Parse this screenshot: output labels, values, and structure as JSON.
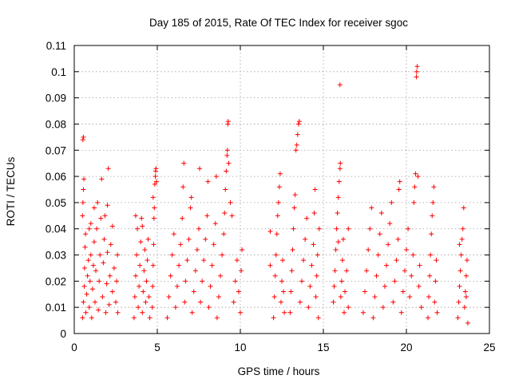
{
  "chart_data": {
    "type": "scatter",
    "title": "Day 185 of 2015, Rate Of TEC Index for receiver sgoc",
    "xlabel": "GPS time / hours",
    "ylabel": "ROTI / TECUs",
    "xlim": [
      0,
      25
    ],
    "ylim": [
      0,
      0.11
    ],
    "grid": true,
    "marker": "+",
    "color": "#ff0000",
    "x_ticks": [
      {
        "value": 0,
        "label": "0"
      },
      {
        "value": 5,
        "label": "5"
      },
      {
        "value": 10,
        "label": "10"
      },
      {
        "value": 15,
        "label": "15"
      },
      {
        "value": 20,
        "label": "20"
      },
      {
        "value": 25,
        "label": "25"
      }
    ],
    "y_ticks": [
      {
        "value": 0,
        "label": "0"
      },
      {
        "value": 0.01,
        "label": "0.01"
      },
      {
        "value": 0.02,
        "label": "0.02"
      },
      {
        "value": 0.03,
        "label": "0.03"
      },
      {
        "value": 0.04,
        "label": "0.04"
      },
      {
        "value": 0.05,
        "label": "0.05"
      },
      {
        "value": 0.06,
        "label": "0.06"
      },
      {
        "value": 0.07,
        "label": "0.07"
      },
      {
        "value": 0.08,
        "label": "0.08"
      },
      {
        "value": 0.09,
        "label": "0.09"
      },
      {
        "value": 0.1,
        "label": "0.1"
      },
      {
        "value": 0.11,
        "label": "0.11"
      }
    ],
    "series": [
      {
        "name": "ROTI",
        "points": [
          [
            0.5,
            0.006
          ],
          [
            0.55,
            0.012
          ],
          [
            0.6,
            0.018
          ],
          [
            0.62,
            0.025
          ],
          [
            0.65,
            0.033
          ],
          [
            0.68,
            0.038
          ],
          [
            0.5,
            0.045
          ],
          [
            0.52,
            0.05
          ],
          [
            0.55,
            0.055
          ],
          [
            0.58,
            0.059
          ],
          [
            0.52,
            0.074
          ],
          [
            0.55,
            0.075
          ],
          [
            0.7,
            0.008
          ],
          [
            0.75,
            0.015
          ],
          [
            0.8,
            0.022
          ],
          [
            0.85,
            0.028
          ],
          [
            0.9,
            0.01
          ],
          [
            0.95,
            0.02
          ],
          [
            1.0,
            0.03
          ],
          [
            1.0,
            0.042
          ],
          [
            1.05,
            0.006
          ],
          [
            1.1,
            0.017
          ],
          [
            1.15,
            0.026
          ],
          [
            1.2,
            0.035
          ],
          [
            1.25,
            0.012
          ],
          [
            1.3,
            0.024
          ],
          [
            1.35,
            0.04
          ],
          [
            1.4,
            0.05
          ],
          [
            1.45,
            0.009
          ],
          [
            1.5,
            0.02
          ],
          [
            1.55,
            0.03
          ],
          [
            1.6,
            0.044
          ],
          [
            1.65,
            0.059
          ],
          [
            1.7,
            0.014
          ],
          [
            1.75,
            0.027
          ],
          [
            1.8,
            0.036
          ],
          [
            1.85,
            0.045
          ],
          [
            1.9,
            0.008
          ],
          [
            1.95,
            0.019
          ],
          [
            2.0,
            0.031
          ],
          [
            2.0,
            0.049
          ],
          [
            2.05,
            0.063
          ],
          [
            2.1,
            0.011
          ],
          [
            2.15,
            0.022
          ],
          [
            2.2,
            0.034
          ],
          [
            2.3,
            0.016
          ],
          [
            2.4,
            0.025
          ],
          [
            2.5,
            0.012
          ],
          [
            2.55,
            0.02
          ],
          [
            2.6,
            0.03
          ],
          [
            2.62,
            0.008
          ],
          [
            1.2,
            0.048
          ],
          [
            0.9,
            0.04
          ],
          [
            2.3,
            0.041
          ],
          [
            3.6,
            0.006
          ],
          [
            3.65,
            0.014
          ],
          [
            3.7,
            0.022
          ],
          [
            3.75,
            0.03
          ],
          [
            3.8,
            0.04
          ],
          [
            3.85,
            0.01
          ],
          [
            3.9,
            0.018
          ],
          [
            3.95,
            0.026
          ],
          [
            4.0,
            0.035
          ],
          [
            4.05,
            0.044
          ],
          [
            4.1,
            0.008
          ],
          [
            4.15,
            0.016
          ],
          [
            4.2,
            0.024
          ],
          [
            4.25,
            0.032
          ],
          [
            4.3,
            0.012
          ],
          [
            4.35,
            0.02
          ],
          [
            4.4,
            0.028
          ],
          [
            4.45,
            0.036
          ],
          [
            4.5,
            0.014
          ],
          [
            4.55,
            0.006
          ],
          [
            3.7,
            0.045
          ],
          [
            4.1,
            0.041
          ],
          [
            4.7,
            0.01
          ],
          [
            4.72,
            0.018
          ],
          [
            4.75,
            0.026
          ],
          [
            4.78,
            0.034
          ],
          [
            4.8,
            0.044
          ],
          [
            4.82,
            0.048
          ],
          [
            4.85,
            0.057
          ],
          [
            4.88,
            0.06
          ],
          [
            4.9,
            0.062
          ],
          [
            4.92,
            0.063
          ],
          [
            4.95,
            0.058
          ],
          [
            4.75,
            0.052
          ],
          [
            5.6,
            0.006
          ],
          [
            5.7,
            0.014
          ],
          [
            5.8,
            0.022
          ],
          [
            5.9,
            0.03
          ],
          [
            6.0,
            0.038
          ],
          [
            6.1,
            0.01
          ],
          [
            6.2,
            0.018
          ],
          [
            6.3,
            0.026
          ],
          [
            6.4,
            0.034
          ],
          [
            6.5,
            0.044
          ],
          [
            6.55,
            0.056
          ],
          [
            6.6,
            0.065
          ],
          [
            6.65,
            0.012
          ],
          [
            6.7,
            0.02
          ],
          [
            6.8,
            0.028
          ],
          [
            6.9,
            0.036
          ],
          [
            7.0,
            0.048
          ],
          [
            7.05,
            0.052
          ],
          [
            7.1,
            0.008
          ],
          [
            7.2,
            0.016
          ],
          [
            7.3,
            0.024
          ],
          [
            7.4,
            0.032
          ],
          [
            7.5,
            0.04
          ],
          [
            7.55,
            0.063
          ],
          [
            7.6,
            0.012
          ],
          [
            7.7,
            0.02
          ],
          [
            7.8,
            0.028
          ],
          [
            7.9,
            0.036
          ],
          [
            8.0,
            0.045
          ],
          [
            8.05,
            0.058
          ],
          [
            8.1,
            0.01
          ],
          [
            8.2,
            0.018
          ],
          [
            8.3,
            0.026
          ],
          [
            8.4,
            0.034
          ],
          [
            8.5,
            0.042
          ],
          [
            8.55,
            0.06
          ],
          [
            8.6,
            0.006
          ],
          [
            8.7,
            0.014
          ],
          [
            8.8,
            0.022
          ],
          [
            8.9,
            0.03
          ],
          [
            9.0,
            0.038
          ],
          [
            9.05,
            0.046
          ],
          [
            9.1,
            0.055
          ],
          [
            9.15,
            0.062
          ],
          [
            9.2,
            0.068
          ],
          [
            9.22,
            0.07
          ],
          [
            9.25,
            0.08
          ],
          [
            9.27,
            0.081
          ],
          [
            9.3,
            0.065
          ],
          [
            9.4,
            0.05
          ],
          [
            9.5,
            0.045
          ],
          [
            9.6,
            0.012
          ],
          [
            9.7,
            0.02
          ],
          [
            9.8,
            0.028
          ],
          [
            9.9,
            0.016
          ],
          [
            10.0,
            0.008
          ],
          [
            10.05,
            0.024
          ],
          [
            10.1,
            0.032
          ],
          [
            12.0,
            0.006
          ],
          [
            12.05,
            0.014
          ],
          [
            12.1,
            0.022
          ],
          [
            12.15,
            0.03
          ],
          [
            12.2,
            0.038
          ],
          [
            12.25,
            0.045
          ],
          [
            12.3,
            0.05
          ],
          [
            12.35,
            0.056
          ],
          [
            12.4,
            0.061
          ],
          [
            12.45,
            0.012
          ],
          [
            12.5,
            0.02
          ],
          [
            12.55,
            0.028
          ],
          [
            12.6,
            0.016
          ],
          [
            12.65,
            0.008
          ],
          [
            11.8,
            0.026
          ],
          [
            11.8,
            0.039
          ],
          [
            13.0,
            0.008
          ],
          [
            13.05,
            0.016
          ],
          [
            13.1,
            0.024
          ],
          [
            13.15,
            0.032
          ],
          [
            13.2,
            0.04
          ],
          [
            13.25,
            0.048
          ],
          [
            13.3,
            0.053
          ],
          [
            13.35,
            0.07
          ],
          [
            13.4,
            0.072
          ],
          [
            13.45,
            0.076
          ],
          [
            13.5,
            0.08
          ],
          [
            13.55,
            0.081
          ],
          [
            13.6,
            0.012
          ],
          [
            13.7,
            0.02
          ],
          [
            13.8,
            0.028
          ],
          [
            13.9,
            0.036
          ],
          [
            14.0,
            0.044
          ],
          [
            14.1,
            0.01
          ],
          [
            14.2,
            0.018
          ],
          [
            14.3,
            0.026
          ],
          [
            14.4,
            0.034
          ],
          [
            14.45,
            0.046
          ],
          [
            14.5,
            0.055
          ],
          [
            14.55,
            0.014
          ],
          [
            14.6,
            0.022
          ],
          [
            14.65,
            0.03
          ],
          [
            14.7,
            0.006
          ],
          [
            14.75,
            0.04
          ],
          [
            15.6,
            0.012
          ],
          [
            15.65,
            0.018
          ],
          [
            15.7,
            0.024
          ],
          [
            15.75,
            0.032
          ],
          [
            15.8,
            0.04
          ],
          [
            15.85,
            0.046
          ],
          [
            15.9,
            0.052
          ],
          [
            15.95,
            0.058
          ],
          [
            16.0,
            0.063
          ],
          [
            16.02,
            0.065
          ],
          [
            16.05,
            0.014
          ],
          [
            16.1,
            0.02
          ],
          [
            16.15,
            0.028
          ],
          [
            16.2,
            0.036
          ],
          [
            16.25,
            0.008
          ],
          [
            16.3,
            0.016
          ],
          [
            16.4,
            0.024
          ],
          [
            16.5,
            0.01
          ],
          [
            16.0,
            0.095
          ],
          [
            15.9,
            0.035
          ],
          [
            16.5,
            0.04
          ],
          [
            17.4,
            0.008
          ],
          [
            17.5,
            0.016
          ],
          [
            17.6,
            0.024
          ],
          [
            17.7,
            0.032
          ],
          [
            17.8,
            0.04
          ],
          [
            17.9,
            0.048
          ],
          [
            18.0,
            0.006
          ],
          [
            18.1,
            0.014
          ],
          [
            18.2,
            0.022
          ],
          [
            18.3,
            0.03
          ],
          [
            18.4,
            0.038
          ],
          [
            18.5,
            0.046
          ],
          [
            18.6,
            0.01
          ],
          [
            18.7,
            0.018
          ],
          [
            18.8,
            0.026
          ],
          [
            18.9,
            0.034
          ],
          [
            19.0,
            0.042
          ],
          [
            19.1,
            0.05
          ],
          [
            19.2,
            0.012
          ],
          [
            19.3,
            0.02
          ],
          [
            19.4,
            0.028
          ],
          [
            19.5,
            0.036
          ],
          [
            19.55,
            0.055
          ],
          [
            19.6,
            0.058
          ],
          [
            19.7,
            0.008
          ],
          [
            19.8,
            0.016
          ],
          [
            19.9,
            0.024
          ],
          [
            20.0,
            0.032
          ],
          [
            20.1,
            0.04
          ],
          [
            20.2,
            0.014
          ],
          [
            20.3,
            0.022
          ],
          [
            20.4,
            0.03
          ],
          [
            20.45,
            0.05
          ],
          [
            20.5,
            0.056
          ],
          [
            20.55,
            0.061
          ],
          [
            20.6,
            0.098
          ],
          [
            20.62,
            0.1
          ],
          [
            20.65,
            0.102
          ],
          [
            20.7,
            0.06
          ],
          [
            20.75,
            0.018
          ],
          [
            20.8,
            0.026
          ],
          [
            20.9,
            0.01
          ],
          [
            21.3,
            0.006
          ],
          [
            21.35,
            0.014
          ],
          [
            21.4,
            0.022
          ],
          [
            21.45,
            0.03
          ],
          [
            21.5,
            0.038
          ],
          [
            21.55,
            0.045
          ],
          [
            21.6,
            0.05
          ],
          [
            21.65,
            0.056
          ],
          [
            21.7,
            0.012
          ],
          [
            21.75,
            0.02
          ],
          [
            21.8,
            0.028
          ],
          [
            21.85,
            0.008
          ],
          [
            23.1,
            0.006
          ],
          [
            23.15,
            0.012
          ],
          [
            23.2,
            0.018
          ],
          [
            23.25,
            0.024
          ],
          [
            23.3,
            0.03
          ],
          [
            23.35,
            0.036
          ],
          [
            23.4,
            0.04
          ],
          [
            23.45,
            0.048
          ],
          [
            23.5,
            0.01
          ],
          [
            23.55,
            0.016
          ],
          [
            23.6,
            0.022
          ],
          [
            23.65,
            0.028
          ],
          [
            23.7,
            0.004
          ],
          [
            23.2,
            0.034
          ],
          [
            23.6,
            0.014
          ]
        ]
      }
    ]
  }
}
